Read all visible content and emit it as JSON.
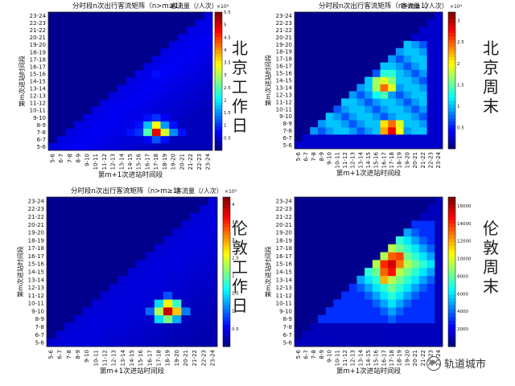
{
  "chart_data": [
    {
      "type": "heatmap",
      "title": "分时段n次出行客流矩阵（n>m≥1）",
      "colorbar_title": "客流量（/人次）",
      "colorbar_exponent": "×10⁴",
      "colorbar_ticks": [
        "0.5",
        "1",
        "1.5",
        "2",
        "2.5",
        "3",
        "3.5",
        "4",
        "4.5",
        "5",
        "5.5"
      ],
      "cmax": 5.5,
      "xlabel": "第m+1次进站时间段",
      "ylabel": "第m次进站时间段",
      "side_label": "北京工作日",
      "cells": [
        {
          "r": 2,
          "c": 12,
          "v": 5.2
        },
        {
          "r": 3,
          "c": 12,
          "v": 3.6
        },
        {
          "r": 2,
          "c": 13,
          "v": 3.4
        },
        {
          "r": 2,
          "c": 11,
          "v": 2.6
        },
        {
          "r": 3,
          "c": 11,
          "v": 1.8
        },
        {
          "r": 3,
          "c": 13,
          "v": 1.6
        },
        {
          "r": 2,
          "c": 14,
          "v": 1.5
        },
        {
          "r": 1,
          "c": 12,
          "v": 1.2
        },
        {
          "r": 2,
          "c": 10,
          "v": 1.0
        },
        {
          "r": 4,
          "c": 12,
          "v": 1.0
        },
        {
          "r": 1,
          "c": 13,
          "v": 0.8
        },
        {
          "r": 4,
          "c": 11,
          "v": 0.8
        },
        {
          "r": 2,
          "c": 9,
          "v": 0.8
        },
        {
          "r": 3,
          "c": 10,
          "v": 0.8
        },
        {
          "r": 2,
          "c": 15,
          "v": 0.8
        },
        {
          "r": 3,
          "c": 14,
          "v": 0.8
        },
        {
          "r": 4,
          "c": 13,
          "v": 0.7
        },
        {
          "r": 1,
          "c": 11,
          "v": 0.7
        },
        {
          "r": 2,
          "c": 8,
          "v": 0.6
        },
        {
          "r": 3,
          "c": 9,
          "v": 0.6
        },
        {
          "r": 2,
          "c": 7,
          "v": 0.5
        },
        {
          "r": 2,
          "c": 6,
          "v": 0.5
        },
        {
          "r": 3,
          "c": 8,
          "v": 0.5
        },
        {
          "r": 1,
          "c": 10,
          "v": 0.5
        },
        {
          "r": 10,
          "c": 12,
          "v": 0.8
        },
        {
          "r": 11,
          "c": 13,
          "v": 0.7
        },
        {
          "r": 12,
          "c": 14,
          "v": 0.6
        },
        {
          "r": 9,
          "c": 11,
          "v": 0.6
        },
        {
          "r": 10,
          "c": 13,
          "v": 0.6
        },
        {
          "r": 12,
          "c": 13,
          "v": 0.55
        },
        {
          "r": 13,
          "c": 14,
          "v": 0.55
        }
      ]
    },
    {
      "type": "heatmap",
      "title": "分时段n次出行客流矩阵（n>m≥1）",
      "colorbar_title": "客流量（/人次）",
      "colorbar_exponent": "×10⁴",
      "colorbar_ticks": [
        "0.5",
        "1",
        "1.5",
        "2",
        "2.5",
        "3"
      ],
      "cmax": 3.2,
      "xlabel": "第m+1次进站时间段",
      "ylabel": "第m次进站时间段",
      "side_label": "北京周末",
      "cells": [
        {
          "r": 2,
          "c": 12,
          "v": 3.0
        },
        {
          "r": 3,
          "c": 12,
          "v": 2.6
        },
        {
          "r": 2,
          "c": 11,
          "v": 2.4
        },
        {
          "r": 3,
          "c": 11,
          "v": 2.2
        },
        {
          "r": 3,
          "c": 13,
          "v": 2.0
        },
        {
          "r": 2,
          "c": 13,
          "v": 2.1
        },
        {
          "r": 8,
          "c": 11,
          "v": 2.6
        },
        {
          "r": 9,
          "c": 11,
          "v": 2.0
        },
        {
          "r": 8,
          "c": 12,
          "v": 2.0
        },
        {
          "r": 9,
          "c": 10,
          "v": 1.8
        },
        {
          "r": 8,
          "c": 10,
          "v": 1.8
        },
        {
          "r": 9,
          "c": 12,
          "v": 1.7
        },
        {
          "r": 7,
          "c": 11,
          "v": 1.5
        },
        {
          "r": 10,
          "c": 12,
          "v": 1.4
        },
        {
          "r": 10,
          "c": 11,
          "v": 1.4
        },
        {
          "r": 7,
          "c": 10,
          "v": 1.3
        }
      ]
    },
    {
      "type": "heatmap",
      "title": "分时段n次出行客流矩阵（n>m≥1）",
      "colorbar_title": "客流量（/人次）",
      "colorbar_exponent": "×10⁴",
      "colorbar_ticks": [
        "0.5",
        "1",
        "1.5",
        "2",
        "2.5",
        "3",
        "3.5",
        "4"
      ],
      "cmax": 4.2,
      "xlabel": "第m+1次进站时间段",
      "ylabel": "第m次进站时间段",
      "side_label": "伦敦工作日",
      "cells": [
        {
          "r": 4,
          "c": 13,
          "v": 4.1
        },
        {
          "r": 4,
          "c": 14,
          "v": 3.0
        },
        {
          "r": 5,
          "c": 13,
          "v": 2.8
        },
        {
          "r": 4,
          "c": 12,
          "v": 2.4
        },
        {
          "r": 3,
          "c": 13,
          "v": 2.2
        },
        {
          "r": 5,
          "c": 14,
          "v": 1.9
        },
        {
          "r": 3,
          "c": 12,
          "v": 1.5
        },
        {
          "r": 5,
          "c": 12,
          "v": 1.5
        },
        {
          "r": 3,
          "c": 14,
          "v": 1.3
        },
        {
          "r": 4,
          "c": 15,
          "v": 1.1
        },
        {
          "r": 4,
          "c": 11,
          "v": 1.0
        },
        {
          "r": 6,
          "c": 13,
          "v": 0.9
        }
      ]
    },
    {
      "type": "heatmap",
      "title": "",
      "colorbar_title": "",
      "colorbar_exponent": "",
      "colorbar_ticks": [
        "2000",
        "4000",
        "6000",
        "8000",
        "10000",
        "12000",
        "14000",
        "16000"
      ],
      "cmax": 17000,
      "xlabel": "第m+1次进站时间段",
      "ylabel": "第m次进站时间段",
      "side_label": "伦敦周末",
      "cells": [
        {
          "r": 10,
          "c": 12,
          "v": 16500
        },
        {
          "r": 9,
          "c": 12,
          "v": 15500
        },
        {
          "r": 10,
          "c": 11,
          "v": 15000
        },
        {
          "r": 11,
          "c": 13,
          "v": 14500
        },
        {
          "r": 9,
          "c": 11,
          "v": 14000
        },
        {
          "r": 11,
          "c": 12,
          "v": 14000
        },
        {
          "r": 10,
          "c": 13,
          "v": 13500
        },
        {
          "r": 8,
          "c": 11,
          "v": 12500
        }
      ]
    }
  ],
  "time_slots": [
    "5-6",
    "6-7",
    "7-8",
    "8-9",
    "9-10",
    "10-11",
    "11-12",
    "12-13",
    "13-14",
    "14-15",
    "15-16",
    "16-17",
    "17-18",
    "18-19",
    "19-20",
    "20-21",
    "21-22",
    "22-23",
    "23-24"
  ],
  "watermark": "轨道城市"
}
